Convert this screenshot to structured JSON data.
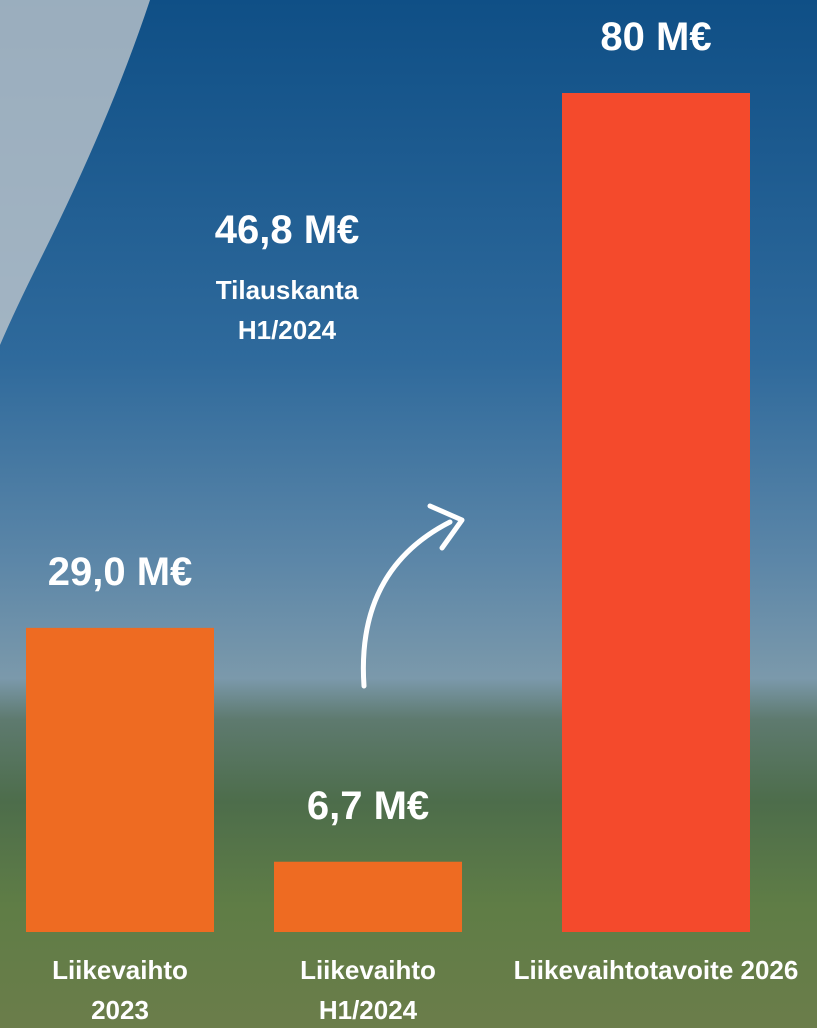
{
  "chart_data": {
    "type": "bar",
    "categories": [
      "Liikevaihto 2023",
      "Liikevaihto H1/2024",
      "Liikevaihtotavoite 2026"
    ],
    "values": [
      29.0,
      6.7,
      80
    ],
    "value_labels": [
      "29,0 M€",
      "6,7 M€",
      "80 M€"
    ],
    "colors": [
      "#ee6b22",
      "#ee6b22",
      "#f44a2c"
    ],
    "annotations": [
      "46,8 M€",
      "Tilauskanta H1/2024"
    ]
  }
}
